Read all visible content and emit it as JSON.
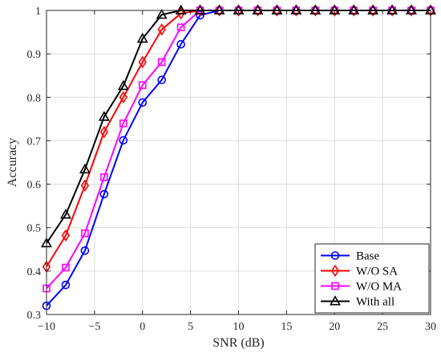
{
  "chart_data": {
    "type": "line",
    "xlabel": "SNR (dB)",
    "ylabel": "Accuracy",
    "xlim": [
      -10,
      30
    ],
    "ylim": [
      0.3,
      1.0
    ],
    "xticks": [
      -10,
      -5,
      0,
      5,
      10,
      15,
      20,
      25,
      30
    ],
    "yticks": [
      0.3,
      0.4,
      0.5,
      0.6,
      0.7,
      0.8,
      0.9,
      1.0
    ],
    "xtick_labels": [
      "−10",
      "−5",
      "0",
      "5",
      "10",
      "15",
      "20",
      "25",
      "30"
    ],
    "ytick_labels": [
      "0.3",
      "0.4",
      "0.5",
      "0.6",
      "0.7",
      "0.8",
      "0.9",
      "1"
    ],
    "grid": true,
    "legend_position": "bottom-right",
    "x": [
      -10,
      -8,
      -6,
      -4,
      -2,
      0,
      2,
      4,
      6,
      8,
      10,
      12,
      14,
      16,
      18,
      20,
      22,
      24,
      26,
      28,
      30
    ],
    "series": [
      {
        "name": "Base",
        "color": "#0000ff",
        "marker": "circle",
        "values": [
          0.32,
          0.368,
          0.447,
          0.577,
          0.701,
          0.788,
          0.84,
          0.922,
          0.989,
          1.0,
          1.0,
          1.0,
          1.0,
          1.0,
          1.0,
          1.0,
          1.0,
          1.0,
          1.0,
          1.0,
          1.0
        ]
      },
      {
        "name": "W/O SA",
        "color": "#ff0000",
        "marker": "diamond",
        "values": [
          0.41,
          0.482,
          0.597,
          0.72,
          0.8,
          0.881,
          0.956,
          0.993,
          1.0,
          1.0,
          1.0,
          1.0,
          1.0,
          1.0,
          1.0,
          1.0,
          1.0,
          1.0,
          1.0,
          1.0,
          1.0
        ]
      },
      {
        "name": "W/O MA",
        "color": "#ff00ff",
        "marker": "square",
        "values": [
          0.36,
          0.408,
          0.487,
          0.616,
          0.74,
          0.828,
          0.881,
          0.961,
          1.0,
          1.0,
          1.0,
          1.0,
          1.0,
          1.0,
          1.0,
          1.0,
          1.0,
          1.0,
          1.0,
          1.0,
          1.0
        ]
      },
      {
        "name": "With all",
        "color": "#000000",
        "marker": "triangle",
        "values": [
          0.464,
          0.53,
          0.634,
          0.755,
          0.826,
          0.935,
          0.99,
          1.0,
          1.0,
          1.0,
          1.0,
          1.0,
          1.0,
          1.0,
          1.0,
          1.0,
          1.0,
          1.0,
          1.0,
          1.0,
          1.0
        ]
      }
    ]
  }
}
